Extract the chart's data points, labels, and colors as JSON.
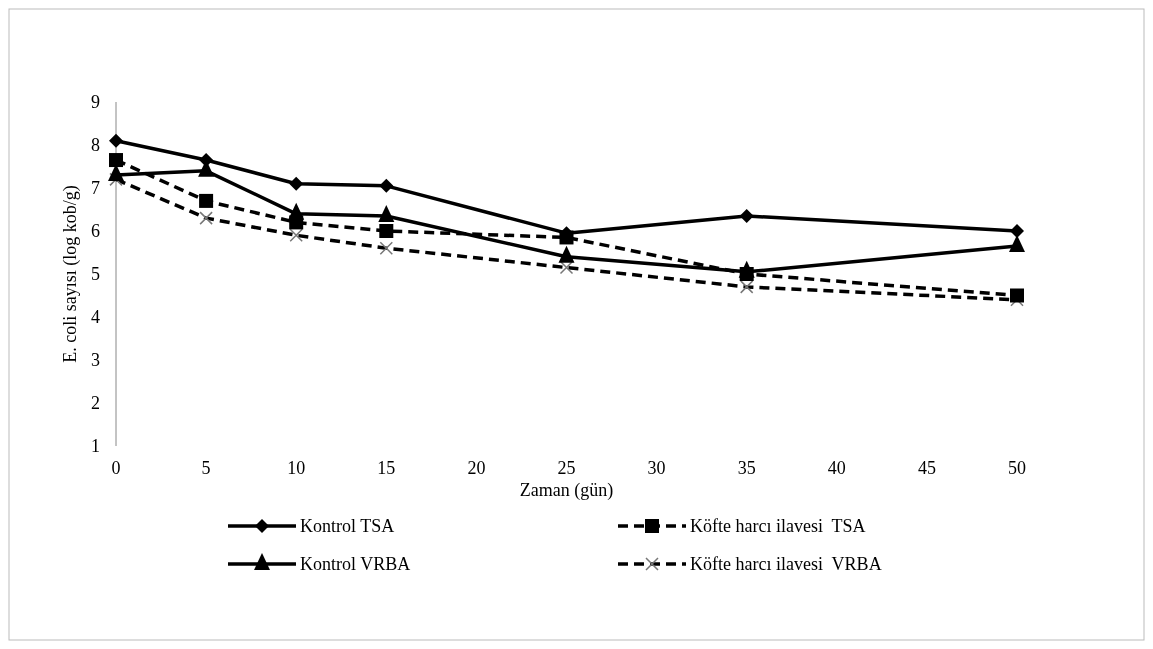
{
  "chart_data": {
    "type": "line",
    "xlabel": "Zaman (gün)",
    "ylabel": "E. coli sayısı (log kob/g)",
    "x": [
      0,
      5,
      10,
      15,
      25,
      35,
      50
    ],
    "xlim": [
      0,
      50
    ],
    "xticks": [
      0,
      5,
      10,
      15,
      20,
      25,
      30,
      35,
      40,
      45,
      50
    ],
    "ylim": [
      1,
      9
    ],
    "yticks": [
      1,
      2,
      3,
      4,
      5,
      6,
      7,
      8,
      9
    ],
    "legend": "bottom",
    "series": [
      {
        "name": "Kontrol TSA",
        "color": "#000000",
        "marker": "diamond",
        "line_style": "solid",
        "values": [
          8.1,
          7.65,
          7.1,
          7.05,
          5.95,
          6.35,
          6.0
        ]
      },
      {
        "name": "Köfte harcı ilavesi  TSA",
        "color": "#000000",
        "marker": "square",
        "line_style": "dashed",
        "values": [
          7.65,
          6.7,
          6.2,
          6.0,
          5.85,
          5.0,
          4.5
        ]
      },
      {
        "name": "Kontrol VRBA",
        "color": "#000000",
        "marker": "triangle",
        "line_style": "solid",
        "values": [
          7.3,
          7.4,
          6.4,
          6.35,
          5.4,
          5.05,
          5.65
        ]
      },
      {
        "name": "Köfte harcı ilavesi  VRBA",
        "color": "#000000",
        "marker": "cross",
        "line_style": "dashed",
        "values": [
          7.2,
          6.3,
          5.9,
          5.6,
          5.15,
          4.7,
          4.4
        ]
      }
    ]
  }
}
